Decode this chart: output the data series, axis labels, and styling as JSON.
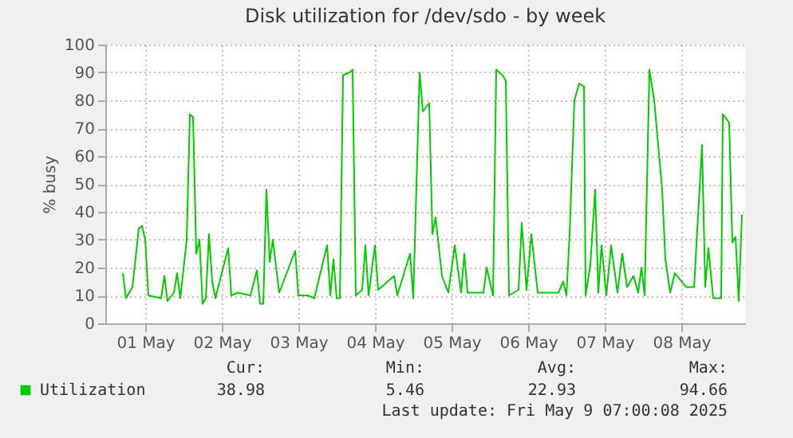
{
  "chart_data": {
    "type": "line",
    "title": "Disk utilization for /dev/sdo - by week",
    "ylabel": "% busy",
    "x": [
      "2025-05-01T05:00",
      "2025-05-01T06:00",
      "2025-05-01T07:00",
      "2025-05-01T08:00",
      "2025-05-01T10:00",
      "2025-05-01T11:00",
      "2025-05-01T12:00",
      "2025-05-01T13:00",
      "2025-05-01T17:00",
      "2025-05-01T18:00",
      "2025-05-01T19:00",
      "2025-05-01T21:00",
      "2025-05-01T22:00",
      "2025-05-01T23:00",
      "2025-05-02T01:00",
      "2025-05-02T02:00",
      "2025-05-02T03:00",
      "2025-05-02T04:00",
      "2025-05-02T05:00",
      "2025-05-02T06:00",
      "2025-05-02T07:00",
      "2025-05-02T08:00",
      "2025-05-02T09:00",
      "2025-05-02T10:00",
      "2025-05-02T14:00",
      "2025-05-02T15:00",
      "2025-05-02T17:00",
      "2025-05-02T21:00",
      "2025-05-02T23:00",
      "2025-05-03T00:00",
      "2025-05-03T01:00",
      "2025-05-03T02:00",
      "2025-05-03T03:00",
      "2025-05-03T04:00",
      "2025-05-03T06:00",
      "2025-05-03T11:00",
      "2025-05-03T12:00",
      "2025-05-03T15:00",
      "2025-05-03T17:00",
      "2025-05-03T21:00",
      "2025-05-03T22:00",
      "2025-05-03T23:00",
      "2025-05-04T00:00",
      "2025-05-04T01:00",
      "2025-05-04T02:00",
      "2025-05-04T04:00",
      "2025-05-04T05:00",
      "2025-05-04T06:00",
      "2025-05-04T08:00",
      "2025-05-04T09:00",
      "2025-05-04T10:00",
      "2025-05-04T12:00",
      "2025-05-04T13:00",
      "2025-05-04T18:00",
      "2025-05-04T19:00",
      "2025-05-04T23:00",
      "2025-05-05T00:00",
      "2025-05-05T02:00",
      "2025-05-05T03:00",
      "2025-05-05T05:00",
      "2025-05-05T06:00",
      "2025-05-05T07:00",
      "2025-05-05T09:00",
      "2025-05-05T11:00",
      "2025-05-05T13:00",
      "2025-05-05T15:00",
      "2025-05-05T16:00",
      "2025-05-05T17:00",
      "2025-05-05T22:00",
      "2025-05-05T23:00",
      "2025-05-06T01:00",
      "2025-05-06T02:00",
      "2025-05-06T04:00",
      "2025-05-06T05:00",
      "2025-05-06T06:00",
      "2025-05-06T09:00",
      "2025-05-06T10:00",
      "2025-05-06T11:30",
      "2025-05-06T13:00",
      "2025-05-06T15:00",
      "2025-05-06T21:30",
      "2025-05-06T23:00",
      "2025-05-07T00:00",
      "2025-05-07T01:00",
      "2025-05-07T02:30",
      "2025-05-07T04:00",
      "2025-05-07T05:30",
      "2025-05-07T06:00",
      "2025-05-07T07:30",
      "2025-05-07T09:00",
      "2025-05-07T10:00",
      "2025-05-07T11:00",
      "2025-05-07T12:30",
      "2025-05-07T14:00",
      "2025-05-07T16:00",
      "2025-05-07T17:30",
      "2025-05-07T19:00",
      "2025-05-07T21:00",
      "2025-05-07T22:30",
      "2025-05-07T23:30",
      "2025-05-08T00:30",
      "2025-05-08T02:00",
      "2025-05-08T03:30",
      "2025-05-08T06:00",
      "2025-05-08T07:00",
      "2025-05-08T08:30",
      "2025-05-08T10:00",
      "2025-05-08T13:30",
      "2025-05-08T16:00",
      "2025-05-08T18:30",
      "2025-05-08T19:30",
      "2025-05-08T20:30",
      "2025-05-08T22:00",
      "2025-05-09T00:30",
      "2025-05-09T01:00",
      "2025-05-09T03:00",
      "2025-05-09T04:00",
      "2025-05-09T05:00",
      "2025-05-09T06:00",
      "2025-05-09T07:00"
    ],
    "series": [
      {
        "name": "Utilization",
        "color": "#00cc00",
        "values": [
          18,
          9,
          11,
          13,
          34,
          35,
          30,
          10,
          9,
          17,
          8,
          11,
          18,
          9,
          30,
          75,
          74,
          25,
          30,
          7,
          9,
          32,
          15,
          9,
          27,
          10,
          11,
          10,
          19,
          7,
          7,
          48,
          22,
          30,
          11,
          26,
          10,
          10,
          9,
          28,
          10,
          23,
          9,
          9,
          89,
          90,
          91,
          10,
          12,
          28,
          10,
          28,
          12,
          17,
          10,
          25,
          9,
          90,
          76,
          79,
          32,
          38,
          17,
          11,
          28,
          11,
          25,
          11,
          11,
          20,
          10,
          91,
          89,
          87,
          10,
          12,
          36,
          12,
          32,
          11,
          11,
          15,
          10,
          32,
          80,
          86,
          85,
          10,
          21,
          48,
          11,
          28,
          10,
          28,
          11,
          25,
          13,
          17,
          11,
          20,
          10,
          91,
          80,
          48,
          23,
          11,
          18,
          13,
          13,
          64,
          13,
          27,
          9,
          9,
          75,
          72,
          29,
          31,
          8,
          39
        ]
      }
    ],
    "xlim": [
      "2025-04-30T23:30",
      "2025-05-09T08:00"
    ],
    "xticks": [
      {
        "value": "2025-05-01T12:00",
        "label": "01 May"
      },
      {
        "value": "2025-05-02T12:00",
        "label": "02 May"
      },
      {
        "value": "2025-05-03T12:00",
        "label": "03 May"
      },
      {
        "value": "2025-05-04T12:00",
        "label": "04 May"
      },
      {
        "value": "2025-05-05T12:00",
        "label": "05 May"
      },
      {
        "value": "2025-05-06T12:00",
        "label": "06 May"
      },
      {
        "value": "2025-05-07T12:00",
        "label": "07 May"
      },
      {
        "value": "2025-05-08T12:00",
        "label": "08 May"
      }
    ],
    "ylim": [
      0,
      100
    ],
    "yticks": [
      0,
      10,
      20,
      30,
      40,
      50,
      60,
      70,
      80,
      90,
      100
    ],
    "grid": true,
    "legend": "bottom",
    "annotations": [
      "Cur:",
      "Min:",
      "Avg:",
      "Max:",
      "38.98",
      "5.46",
      "22.93",
      "94.66",
      "Last update: Fri May  9 07:00:08 2025"
    ]
  }
}
